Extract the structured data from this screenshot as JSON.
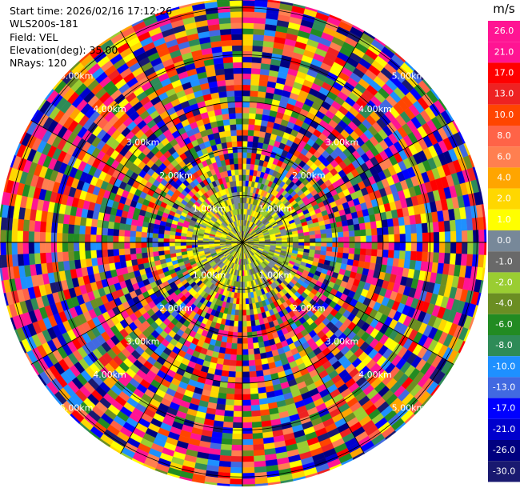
{
  "header": {
    "start_time": "Start time: 2026/02/16 17:12:26",
    "instrument": "WLS200s-181",
    "field": "Field: VEL",
    "elevation": "Elevation(deg): 35.00",
    "nrays": "NRays: 120"
  },
  "colorbar": {
    "unit": "m/s",
    "levels": [
      "26.0",
      "21.0",
      "17.0",
      "13.0",
      "10.0",
      "8.0",
      "6.0",
      "4.0",
      "2.0",
      "1.0",
      "0.0",
      "-1.0",
      "-2.0",
      "-4.0",
      "-6.0",
      "-8.0",
      "-10.0",
      "-13.0",
      "-17.0",
      "-21.0",
      "-26.0",
      "-30.0"
    ],
    "colors": [
      "#ff1493",
      "#ff1493",
      "#ff0000",
      "#ee2222",
      "#ff4500",
      "#ff6347",
      "#ff7f50",
      "#ffa500",
      "#ffd700",
      "#ffff00",
      "#778899",
      "#696969",
      "#9acd32",
      "#6b8e23",
      "#228b22",
      "#2e8b57",
      "#1e90ff",
      "#4169e1",
      "#0000ff",
      "#0000cd",
      "#000080",
      "#191970"
    ]
  },
  "chart_data": {
    "type": "ppi",
    "field": "VEL",
    "units": "m/s",
    "elevation_deg": 35.0,
    "n_rays": 120,
    "range_rings_km": [
      1.0,
      2.0,
      3.0,
      4.0,
      5.0
    ],
    "ring_labels": [
      "1.00km",
      "2.00km",
      "3.00km",
      "4.00km",
      "5.00km"
    ],
    "max_range_km": 5.2,
    "near_field": {
      "range_km": 0.9,
      "dominant_values_ms": [
        0.0,
        2.0,
        -1.0
      ],
      "description_values": [
        0.0,
        1.0,
        -2.0
      ]
    },
    "far_field_values_ms": [
      -30.0,
      -21.0,
      -13.0,
      -8.0,
      2.0,
      10.0,
      21.0,
      26.0
    ]
  }
}
